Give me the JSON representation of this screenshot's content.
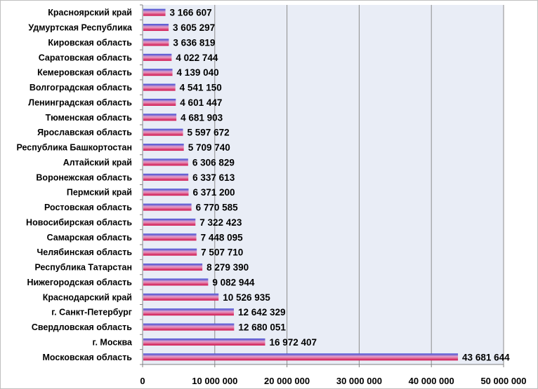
{
  "chart_data": {
    "type": "bar",
    "orientation": "horizontal",
    "categories": [
      "Красноярский край",
      "Удмуртская Республика",
      "Кировская область",
      "Саратовская область",
      "Кемеровская область",
      "Волгоградская область",
      "Ленинградская область",
      "Тюменская область",
      "Ярославская область",
      "Республика Башкортостан",
      "Алтайский край",
      "Воронежская область",
      "Пермский край",
      "Ростовская область",
      "Новосибирская область",
      "Самарская область",
      "Челябинская область",
      "Республика Татарстан",
      "Нижегородская область",
      "Краснодарский край",
      "г. Санкт-Петербург",
      "Свердловская область",
      "г. Москва",
      "Московская область"
    ],
    "values": [
      3166607,
      3605297,
      3636819,
      4022744,
      4139040,
      4541150,
      4601447,
      4681903,
      5597672,
      5709740,
      6306829,
      6337613,
      6371200,
      6770585,
      7322423,
      7448095,
      7507710,
      8279390,
      9082944,
      10526935,
      12642329,
      12680051,
      16972407,
      43681644
    ],
    "value_labels": [
      "3 166 607",
      "3 605 297",
      "3 636 819",
      "4 022 744",
      "4 139 040",
      "4 541 150",
      "4 601 447",
      "4 681 903",
      "5 597 672",
      "5 709 740",
      "6 306 829",
      "6 337 613",
      "6 371 200",
      "6 770 585",
      "7 322 423",
      "7 448 095",
      "7 507 710",
      "8 279 390",
      "9 082 944",
      "10 526 935",
      "12 642 329",
      "12 680 051",
      "16 972 407",
      "43 681 644"
    ],
    "xlim": [
      0,
      50000000
    ],
    "x_ticks": [
      0,
      10000000,
      20000000,
      30000000,
      40000000,
      50000000
    ],
    "x_tick_labels": [
      "0",
      "10 000 000",
      "20 000 000",
      "30 000 000",
      "40 000 000",
      "50 000 000"
    ],
    "grid": true,
    "legend": false,
    "colors": {
      "plot_background": "#e9edf6",
      "gridline": "#8c8c8c",
      "bar_top": "#3b4bd6",
      "bar_mid": "#e8a0c8",
      "bar_bottom": "#d0104a"
    }
  }
}
